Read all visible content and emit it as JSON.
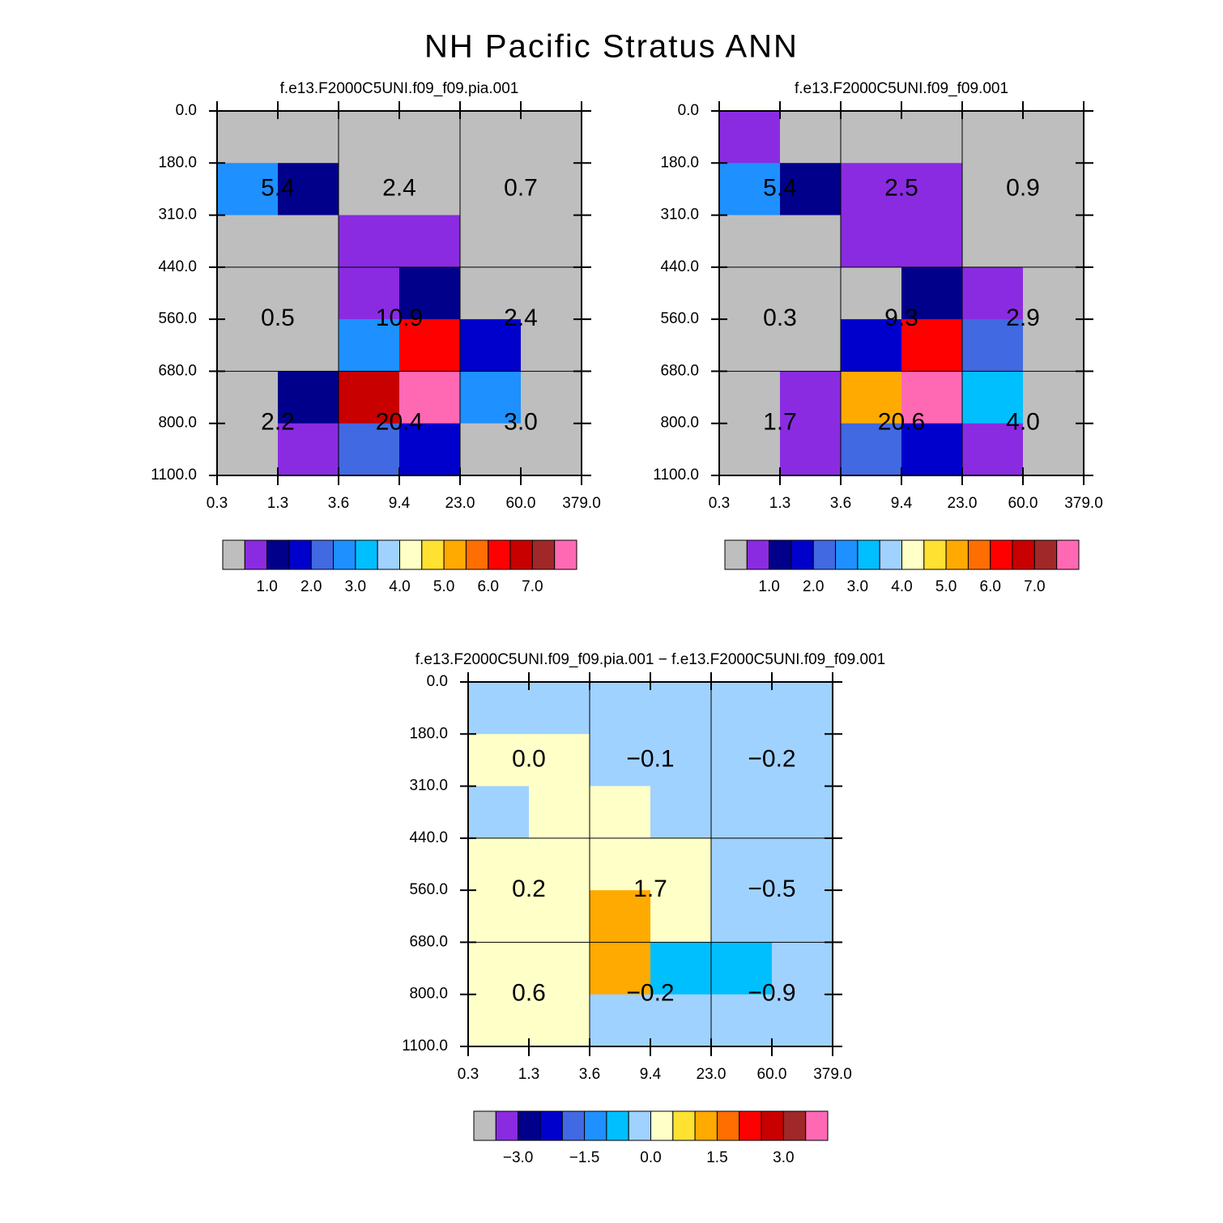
{
  "title": "NH Pacific Stratus ANN",
  "chart_data": [
    {
      "type": "heatmap",
      "subtitle": "f.e13.F2000C5UNI.f09_f09.pia.001",
      "x_edges": [
        "0.3",
        "1.3",
        "3.6",
        "9.4",
        "23.0",
        "60.0",
        "379.0"
      ],
      "y_edges": [
        "0.0",
        "180.0",
        "310.0",
        "440.0",
        "560.0",
        "680.0",
        "800.0",
        "1100.0"
      ],
      "z": [
        [
          0.2,
          0.2,
          0.2,
          0.2,
          0.2,
          0.2
        ],
        [
          2.75,
          1.25,
          0.2,
          0.2,
          0.2,
          0.2
        ],
        [
          0.2,
          0.2,
          0.75,
          0.75,
          0.2,
          0.2
        ],
        [
          0.2,
          0.2,
          0.75,
          1.25,
          0.2,
          0.2
        ],
        [
          0.2,
          0.2,
          2.75,
          6.25,
          1.75,
          0.2
        ],
        [
          0.2,
          1.25,
          6.75,
          8.0,
          2.75,
          0.2
        ],
        [
          0.2,
          0.75,
          2.25,
          1.75,
          0.2,
          0.2
        ]
      ],
      "block_labels": [
        [
          "5.4",
          "2.4",
          "0.7"
        ],
        [
          "0.5",
          "10.9",
          "2.4"
        ],
        [
          "2.2",
          "20.4",
          "3.0"
        ]
      ],
      "levels": [
        0.5,
        1.0,
        1.5,
        2.0,
        2.5,
        3.0,
        3.5,
        4.0,
        4.5,
        5.0,
        5.5,
        6.0,
        6.5,
        7.0,
        7.5
      ],
      "colors": [
        "#bebebe",
        "#8a2be2",
        "#00008b",
        "#0000cd",
        "#4169e1",
        "#1e90ff",
        "#00bfff",
        "#a0d2ff",
        "#ffffc8",
        "#ffe132",
        "#ffaa00",
        "#ff6e00",
        "#ff0000",
        "#c80000",
        "#a02828",
        "#ff69b4"
      ],
      "colorbar_ticks": [
        {
          "value": 1,
          "label": "1.0"
        },
        {
          "value": 2,
          "label": "2.0"
        },
        {
          "value": 3,
          "label": "3.0"
        },
        {
          "value": 4,
          "label": "4.0"
        },
        {
          "value": 5,
          "label": "5.0"
        },
        {
          "value": 6,
          "label": "6.0"
        },
        {
          "value": 7,
          "label": "7.0"
        }
      ]
    },
    {
      "type": "heatmap",
      "subtitle": "f.e13.F2000C5UNI.f09_f09.001",
      "x_edges": [
        "0.3",
        "1.3",
        "3.6",
        "9.4",
        "23.0",
        "60.0",
        "379.0"
      ],
      "y_edges": [
        "0.0",
        "180.0",
        "310.0",
        "440.0",
        "560.0",
        "680.0",
        "800.0",
        "1100.0"
      ],
      "z": [
        [
          0.75,
          0.2,
          0.2,
          0.2,
          0.2,
          0.2
        ],
        [
          2.75,
          1.25,
          0.75,
          0.75,
          0.2,
          0.2
        ],
        [
          0.2,
          0.2,
          0.75,
          0.75,
          0.2,
          0.2
        ],
        [
          0.2,
          0.2,
          0.2,
          1.25,
          0.75,
          0.2
        ],
        [
          0.2,
          0.2,
          1.75,
          6.25,
          2.25,
          0.2
        ],
        [
          0.2,
          0.75,
          5.25,
          8.0,
          3.25,
          0.2
        ],
        [
          0.2,
          0.75,
          2.25,
          1.75,
          0.75,
          0.2
        ]
      ],
      "block_labels": [
        [
          "5.4",
          "2.5",
          "0.9"
        ],
        [
          "0.3",
          "9.3",
          "2.9"
        ],
        [
          "1.7",
          "20.6",
          "4.0"
        ]
      ],
      "levels": [
        0.5,
        1.0,
        1.5,
        2.0,
        2.5,
        3.0,
        3.5,
        4.0,
        4.5,
        5.0,
        5.5,
        6.0,
        6.5,
        7.0,
        7.5
      ],
      "colors": [
        "#bebebe",
        "#8a2be2",
        "#00008b",
        "#0000cd",
        "#4169e1",
        "#1e90ff",
        "#00bfff",
        "#a0d2ff",
        "#ffffc8",
        "#ffe132",
        "#ffaa00",
        "#ff6e00",
        "#ff0000",
        "#c80000",
        "#a02828",
        "#ff69b4"
      ],
      "colorbar_ticks": [
        {
          "value": 1,
          "label": "1.0"
        },
        {
          "value": 2,
          "label": "2.0"
        },
        {
          "value": 3,
          "label": "3.0"
        },
        {
          "value": 4,
          "label": "4.0"
        },
        {
          "value": 5,
          "label": "5.0"
        },
        {
          "value": 6,
          "label": "6.0"
        },
        {
          "value": 7,
          "label": "7.0"
        }
      ]
    },
    {
      "type": "heatmap",
      "subtitle": "f.e13.F2000C5UNI.f09_f09.pia.001 − f.e13.F2000C5UNI.f09_f09.001",
      "x_edges": [
        "0.3",
        "1.3",
        "3.6",
        "9.4",
        "23.0",
        "60.0",
        "379.0"
      ],
      "y_edges": [
        "0.0",
        "180.0",
        "310.0",
        "440.0",
        "560.0",
        "680.0",
        "800.0",
        "1100.0"
      ],
      "z": [
        [
          -0.2,
          -0.2,
          -0.2,
          -0.2,
          -0.2,
          -0.2
        ],
        [
          0.2,
          0.2,
          -0.2,
          -0.2,
          -0.2,
          -0.2
        ],
        [
          -0.2,
          0.2,
          0.2,
          -0.2,
          -0.2,
          -0.2
        ],
        [
          0.2,
          0.2,
          0.2,
          0.2,
          -0.2,
          -0.2
        ],
        [
          0.2,
          0.2,
          1.25,
          0.2,
          -0.2,
          -0.2
        ],
        [
          0.2,
          0.2,
          1.25,
          -0.75,
          -0.75,
          -0.2
        ],
        [
          0.2,
          0.2,
          -0.2,
          -0.2,
          -0.2,
          -0.2
        ]
      ],
      "block_labels": [
        [
          "0.0",
          "−0.1",
          "−0.2"
        ],
        [
          "0.2",
          "1.7",
          "−0.5"
        ],
        [
          "0.6",
          "−0.2",
          "−0.9"
        ]
      ],
      "levels": [
        -3.5,
        -3.0,
        -2.5,
        -2.0,
        -1.5,
        -1.0,
        -0.5,
        0.0,
        0.5,
        1.0,
        1.5,
        2.0,
        2.5,
        3.0,
        3.5
      ],
      "colors": [
        "#bebebe",
        "#8a2be2",
        "#00008b",
        "#0000cd",
        "#4169e1",
        "#1e90ff",
        "#00bfff",
        "#a0d2ff",
        "#ffffc8",
        "#ffe132",
        "#ffaa00",
        "#ff6e00",
        "#ff0000",
        "#c80000",
        "#a02828",
        "#ff69b4"
      ],
      "colorbar_ticks": [
        {
          "value": -3,
          "label": "−3.0"
        },
        {
          "value": -1.5,
          "label": "−1.5"
        },
        {
          "value": 0,
          "label": "0.0"
        },
        {
          "value": 1.5,
          "label": "1.5"
        },
        {
          "value": 3,
          "label": "3.0"
        }
      ]
    }
  ]
}
